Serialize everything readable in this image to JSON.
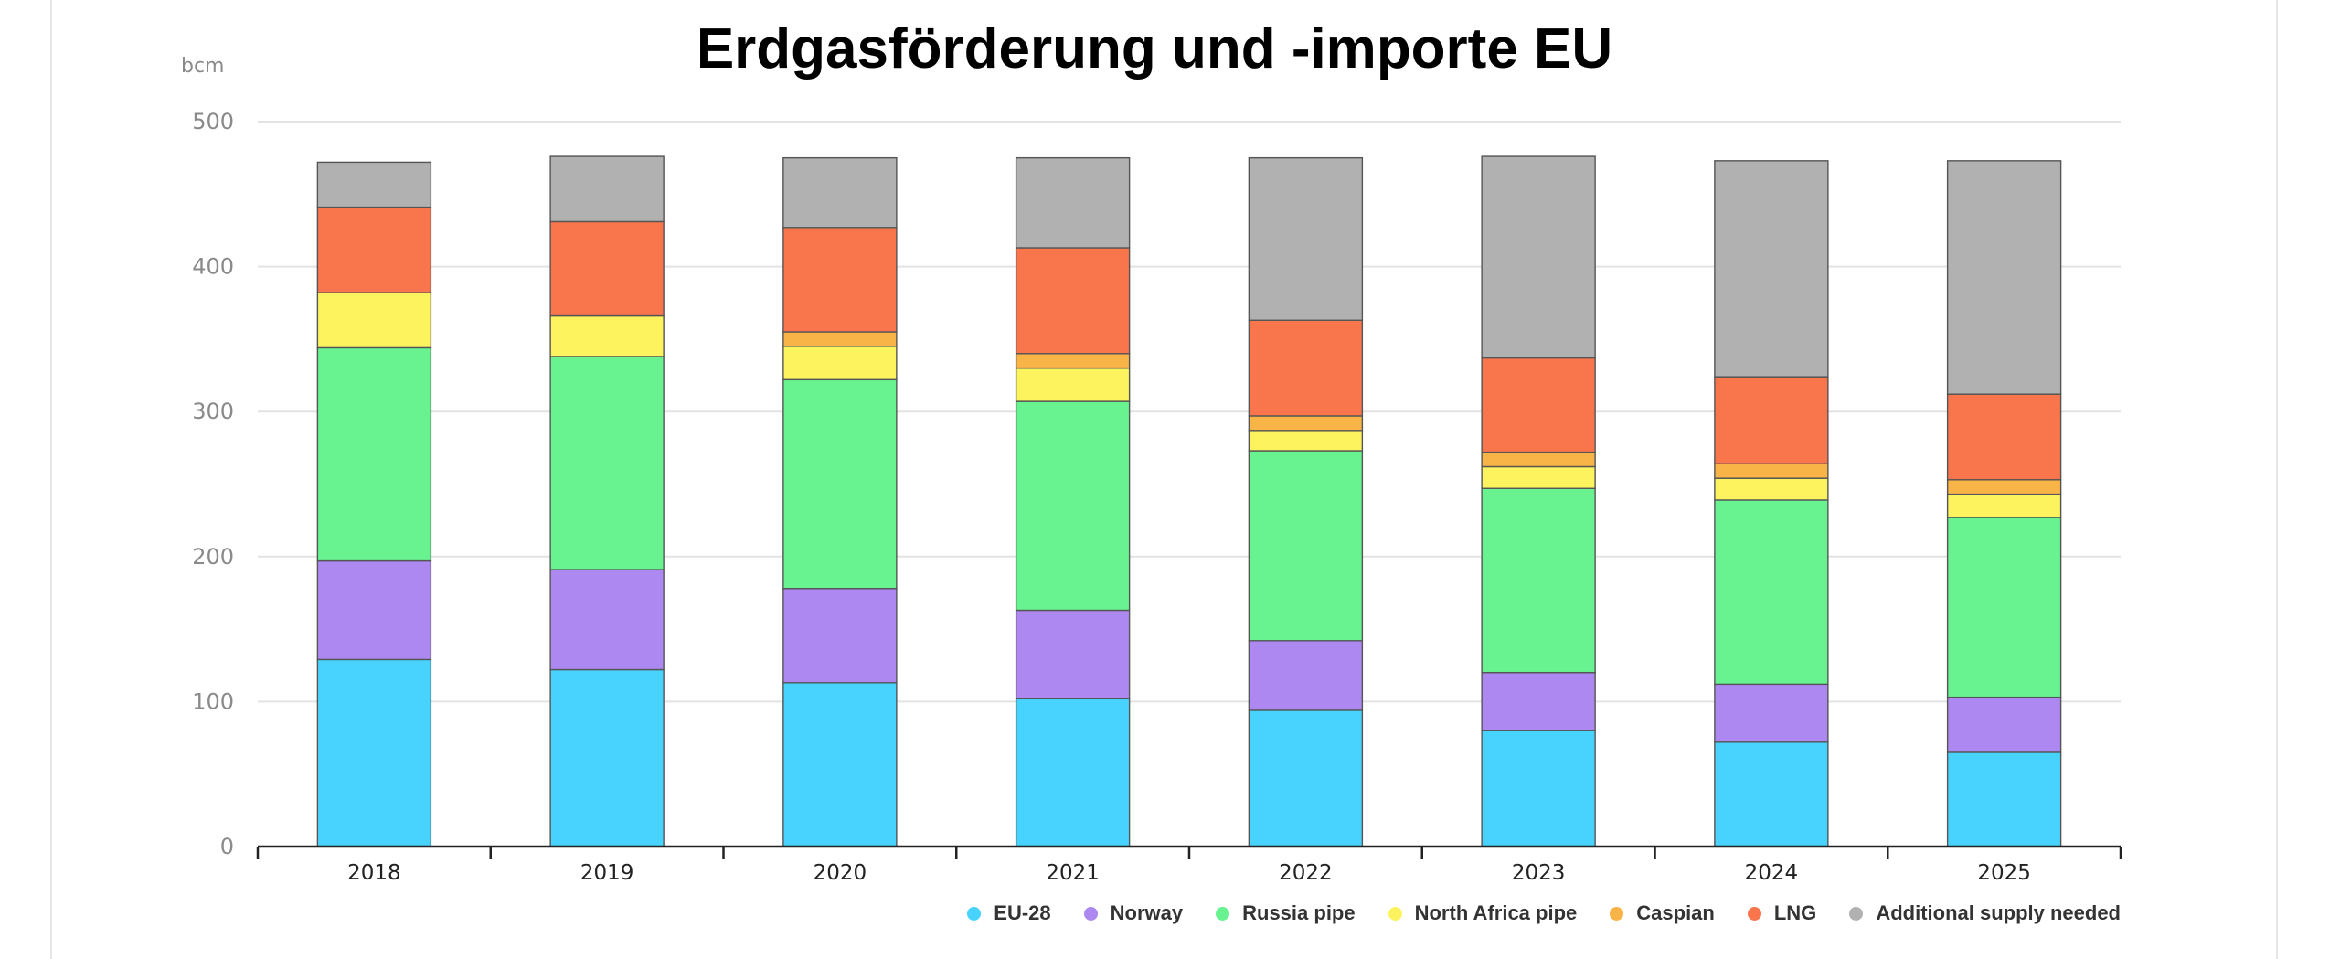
{
  "chart_data": {
    "type": "bar",
    "stacked": true,
    "title": "Erdgasförderung und -importe EU",
    "ylabel": "bcm",
    "xlabel": "",
    "ylim": [
      0,
      500
    ],
    "yticks": [
      0,
      100,
      200,
      300,
      400,
      500
    ],
    "grid": true,
    "legend_position": "bottom-right",
    "categories": [
      "2018",
      "2019",
      "2020",
      "2021",
      "2022",
      "2023",
      "2024",
      "2025"
    ],
    "series": [
      {
        "name": "EU-28",
        "color": "#48d3fe",
        "values": [
          129,
          122,
          113,
          102,
          94,
          80,
          72,
          65
        ]
      },
      {
        "name": "Norway",
        "color": "#ac88f0",
        "values": [
          68,
          69,
          65,
          61,
          48,
          40,
          40,
          38
        ]
      },
      {
        "name": "Russia pipe",
        "color": "#68f290",
        "values": [
          147,
          147,
          144,
          144,
          131,
          127,
          127,
          124
        ]
      },
      {
        "name": "North Africa pipe",
        "color": "#fcf35e",
        "values": [
          38,
          28,
          23,
          23,
          14,
          15,
          15,
          16
        ]
      },
      {
        "name": "Caspian",
        "color": "#f8b446",
        "values": [
          0,
          0,
          10,
          10,
          10,
          10,
          10,
          10
        ]
      },
      {
        "name": "LNG",
        "color": "#f9754c",
        "values": [
          59,
          65,
          72,
          73,
          66,
          65,
          60,
          59
        ]
      },
      {
        "name": "Additional supply needed",
        "color": "#b1b1b1",
        "values": [
          31,
          45,
          48,
          62,
          112,
          139,
          149,
          161
        ]
      }
    ]
  }
}
